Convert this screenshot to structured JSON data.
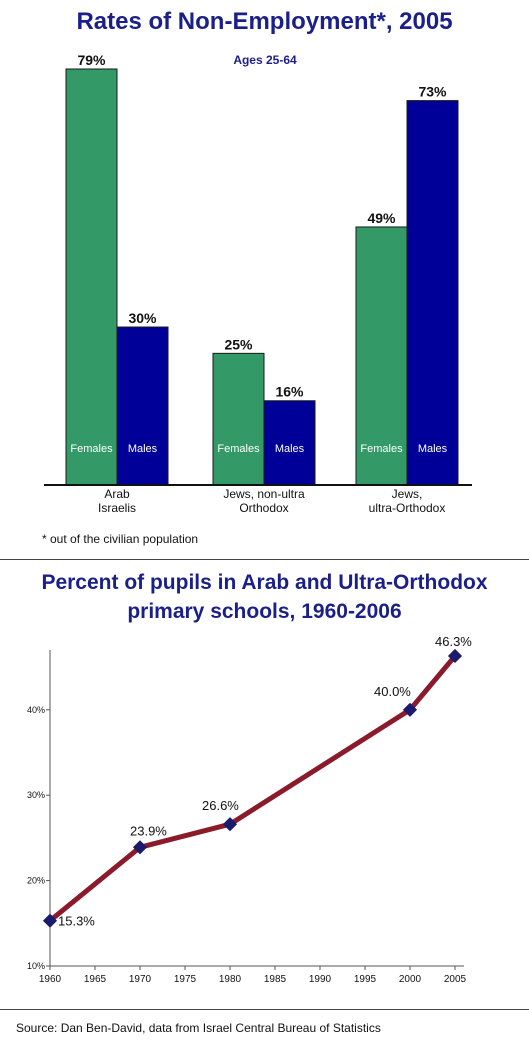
{
  "chart_data": [
    {
      "type": "bar",
      "title": "Rates of Non-Employment*, 2005",
      "subtitle": "Ages 25-64",
      "categories": [
        "Arab Israelis",
        "Jews, non-ultra Orthodox",
        "Jews, ultra-Orthodox"
      ],
      "category_lines": [
        [
          "Arab",
          "Israelis"
        ],
        [
          "Jews, non-ultra",
          "Orthodox"
        ],
        [
          "Jews,",
          "ultra-Orthodox"
        ]
      ],
      "series": [
        {
          "name": "Females",
          "values": [
            79,
            25,
            49
          ],
          "labels": [
            "79%",
            "25%",
            "49%"
          ],
          "color": "#339966"
        },
        {
          "name": "Males",
          "values": [
            30,
            16,
            73
          ],
          "labels": [
            "30%",
            "16%",
            "73%"
          ],
          "color": "#000099"
        }
      ],
      "ylim": [
        0,
        80
      ],
      "footnote": "* out of the civilian population"
    },
    {
      "type": "line",
      "title": "Percent of pupils in Arab and Ultra-Orthodox primary schools, 1960-2006",
      "title_lines": [
        "Percent of pupils in Arab and Ultra-Orthodox",
        "primary schools, 1960-2006"
      ],
      "x": [
        1960,
        1970,
        1980,
        2000,
        2005
      ],
      "y": [
        15.3,
        23.9,
        26.6,
        40.0,
        46.3
      ],
      "point_labels": [
        "15.3%",
        "23.9%",
        "26.6%",
        "40.0%",
        "46.3%"
      ],
      "xticks": [
        1960,
        1965,
        1970,
        1975,
        1980,
        1985,
        1990,
        1995,
        2000,
        2005
      ],
      "yticks": [
        10,
        20,
        30,
        40
      ],
      "ytick_labels": [
        "10%",
        "20%",
        "30%",
        "40%"
      ],
      "xlim": [
        1960,
        2006
      ],
      "ylim": [
        10,
        47
      ],
      "line_color": "#8b1a2b",
      "marker_color": "#1a1a6e"
    }
  ],
  "source": "Source: Dan Ben-David, data from Israel Central Bureau of Statistics"
}
